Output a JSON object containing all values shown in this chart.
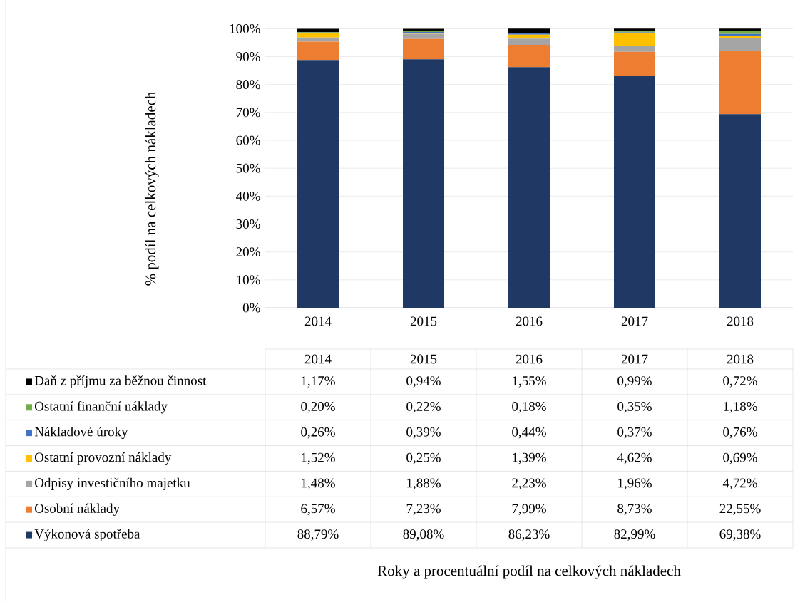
{
  "chart_data": {
    "type": "bar",
    "stacked": true,
    "categories": [
      "2014",
      "2015",
      "2016",
      "2017",
      "2018"
    ],
    "annotations": [
      "% podíl na celkových nákladech",
      "Roky a procentuální podíl na celkových nákladech"
    ],
    "ylim": [
      0,
      100.1
    ],
    "yticks": [
      {
        "value": 0,
        "label": "0%"
      },
      {
        "value": 10,
        "label": "10%"
      },
      {
        "value": 20,
        "label": "20%"
      },
      {
        "value": 30,
        "label": "30%"
      },
      {
        "value": 40,
        "label": "40%"
      },
      {
        "value": 50,
        "label": "50%"
      },
      {
        "value": 60,
        "label": "60%"
      },
      {
        "value": 70,
        "label": "70%"
      },
      {
        "value": 80,
        "label": "80%"
      },
      {
        "value": 90,
        "label": "90%"
      },
      {
        "value": 100,
        "label": "100%"
      }
    ],
    "grid": "y",
    "legend": "bottom",
    "series": [
      {
        "name": "Výkonová spotřeba",
        "color": "#203864",
        "values": [
          88.79,
          89.08,
          86.23,
          82.99,
          69.38
        ],
        "value_labels": [
          "88,79%",
          "89,08%",
          "86,23%",
          "82,99%",
          "69,38%"
        ]
      },
      {
        "name": "Osobní náklady",
        "color": "#ed7d31",
        "values": [
          6.57,
          7.23,
          7.99,
          8.73,
          22.55
        ],
        "value_labels": [
          "6,57%",
          "7,23%",
          "7,99%",
          "8,73%",
          "22,55%"
        ]
      },
      {
        "name": "Odpisy investičního majetku",
        "color": "#a5a5a5",
        "values": [
          1.48,
          1.88,
          2.23,
          1.96,
          4.72
        ],
        "value_labels": [
          "1,48%",
          "1,88%",
          "2,23%",
          "1,96%",
          "4,72%"
        ]
      },
      {
        "name": "Ostatní provozní náklady",
        "color": "#ffc000",
        "values": [
          1.52,
          0.25,
          1.39,
          4.62,
          0.69
        ],
        "value_labels": [
          "1,52%",
          "0,25%",
          "1,39%",
          "4,62%",
          "0,69%"
        ]
      },
      {
        "name": "Nákladové úroky",
        "color": "#4472c4",
        "values": [
          0.26,
          0.39,
          0.44,
          0.37,
          0.76
        ],
        "value_labels": [
          "0,26%",
          "0,39%",
          "0,44%",
          "0,37%",
          "0,76%"
        ]
      },
      {
        "name": "Ostatní finanční náklady",
        "color": "#70ad47",
        "values": [
          0.2,
          0.22,
          0.18,
          0.35,
          1.18
        ],
        "value_labels": [
          "0,20%",
          "0,22%",
          "0,18%",
          "0,35%",
          "1,18%"
        ]
      },
      {
        "name": "Daň z příjmu za běžnou činnost",
        "color": "#000000",
        "values": [
          1.17,
          0.94,
          1.55,
          0.99,
          0.72
        ],
        "value_labels": [
          "1,17%",
          "0,94%",
          "1,55%",
          "0,99%",
          "0,72%"
        ]
      }
    ]
  }
}
